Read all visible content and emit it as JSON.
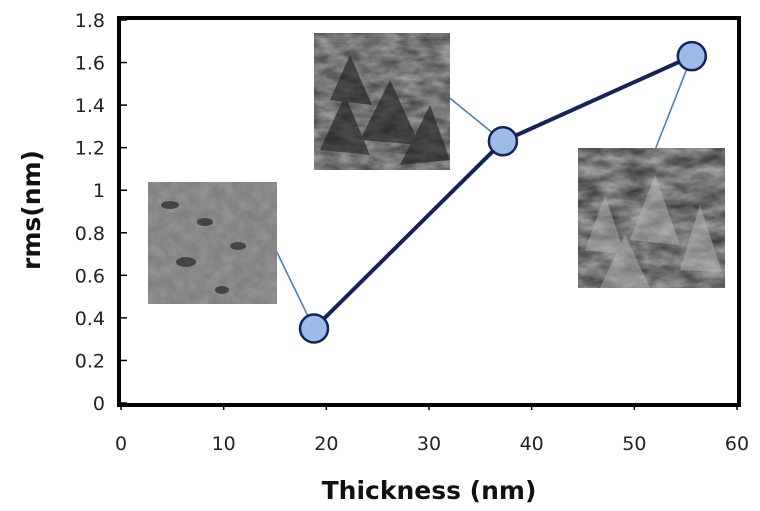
{
  "chart_data": {
    "type": "line",
    "title": "",
    "xlabel": "Thickness (nm)",
    "ylabel": "rms(nm)",
    "xlim": [
      0,
      60
    ],
    "ylim": [
      0,
      1.8
    ],
    "xticks": [
      "0",
      "10",
      "20",
      "30",
      "40",
      "50",
      "60"
    ],
    "yticks": [
      "0",
      "0.2",
      "0.4",
      "0.6",
      "0.8",
      "1",
      "1.2",
      "1.4",
      "1.6",
      "1.8"
    ],
    "grid": false,
    "legend": "none",
    "series": [
      {
        "x": [
          18.8,
          37.2,
          55.6
        ],
        "y": [
          0.35,
          1.23,
          1.63
        ]
      }
    ],
    "annotations": [
      {
        "kind": "sem-surface-image",
        "texture": "rough",
        "points_to_index": 0
      },
      {
        "kind": "sem-surface-image",
        "texture": "rougher",
        "points_to_index": 1
      },
      {
        "kind": "sem-surface-image",
        "texture": "roughest",
        "points_to_index": 2
      }
    ]
  },
  "colors": {
    "line": "#13245a",
    "marker_fill": "#9dbbe6",
    "marker_stroke": "#13245a",
    "leader": "#4a7fc0",
    "frame": "#000000"
  }
}
